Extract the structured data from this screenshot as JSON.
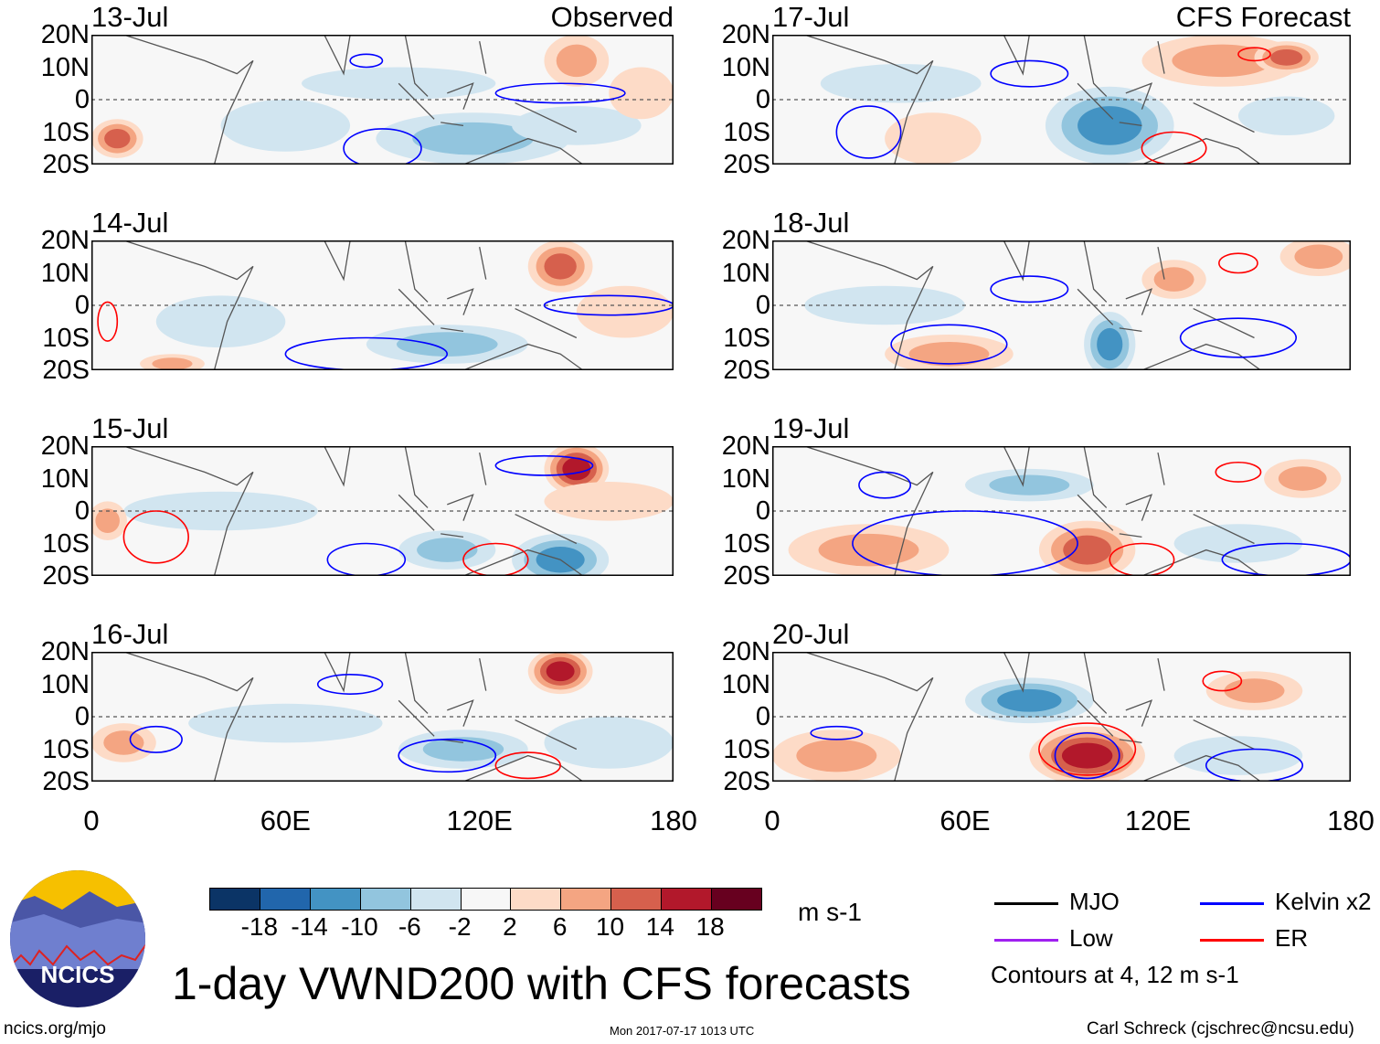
{
  "title": "1-day VWND200 with CFS forecasts",
  "left_label": "Observed",
  "right_label": "CFS Forecast",
  "lat_ticks": [
    "20N",
    "10N",
    "0",
    "10S",
    "20S"
  ],
  "lon_ticks": [
    "0",
    "60E",
    "120E",
    "180"
  ],
  "units": "m s-1",
  "colorbar": {
    "labels": [
      "-18",
      "-14",
      "-10",
      "-6",
      "-2",
      "2",
      "6",
      "10",
      "14",
      "18"
    ],
    "colors": [
      "#0b3466",
      "#2166ac",
      "#4393c3",
      "#92c5de",
      "#d1e5f0",
      "#f7f7f7",
      "#fddbc7",
      "#f4a582",
      "#d6604d",
      "#b2182b",
      "#67001f"
    ]
  },
  "legend": {
    "items": [
      {
        "label": "MJO",
        "color": "#000000"
      },
      {
        "label": "Kelvin x2",
        "color": "#0000ff"
      },
      {
        "label": "Low",
        "color": "#a020f0"
      },
      {
        "label": "ER",
        "color": "#ff0000"
      }
    ],
    "note": "Contours at 4, 12 m s-1"
  },
  "logo_text": "NCICS",
  "footer": {
    "url": "ncics.org/mjo",
    "timestamp": "Mon 2017-07-17 1013 UTC",
    "author": "Carl Schreck (cjschrec@ncsu.edu)"
  },
  "chart_data": {
    "type": "heatmap",
    "variable": "200-hPa meridional wind anomaly",
    "lon_range": [
      0,
      180
    ],
    "lat_range": [
      -20,
      20
    ],
    "panels": [
      {
        "date": "13-Jul",
        "blobs": [
          [
            8,
            -12,
            8,
            6,
            12
          ],
          [
            150,
            12,
            10,
            8,
            10
          ],
          [
            118,
            -12,
            30,
            8,
            -10
          ],
          [
            60,
            -8,
            20,
            8,
            -6
          ],
          [
            95,
            5,
            30,
            5,
            -4
          ],
          [
            150,
            -8,
            20,
            6,
            -6
          ],
          [
            170,
            2,
            10,
            8,
            6
          ]
        ],
        "contours": [
          [
            90,
            -15,
            12,
            6,
            "kelvin"
          ],
          [
            145,
            2,
            20,
            3,
            "kelvin"
          ],
          [
            85,
            12,
            5,
            2,
            "kelvin"
          ]
        ]
      },
      {
        "date": "17-Jul",
        "blobs": [
          [
            105,
            -8,
            20,
            12,
            -14
          ],
          [
            140,
            12,
            25,
            8,
            8
          ],
          [
            160,
            13,
            10,
            5,
            12
          ],
          [
            50,
            -12,
            15,
            8,
            6
          ],
          [
            40,
            5,
            25,
            6,
            -6
          ],
          [
            160,
            -5,
            15,
            6,
            -6
          ]
        ],
        "contours": [
          [
            80,
            8,
            12,
            4,
            "kelvin"
          ],
          [
            125,
            -15,
            10,
            5,
            "er"
          ],
          [
            150,
            14,
            5,
            2,
            "er"
          ],
          [
            30,
            -10,
            10,
            8,
            "kelvin"
          ]
        ]
      },
      {
        "date": "14-Jul",
        "blobs": [
          [
            145,
            12,
            10,
            8,
            14
          ],
          [
            110,
            -12,
            25,
            6,
            -10
          ],
          [
            165,
            -2,
            15,
            8,
            6
          ],
          [
            40,
            -5,
            20,
            8,
            -4
          ],
          [
            25,
            -18,
            10,
            3,
            8
          ]
        ],
        "contours": [
          [
            85,
            -15,
            25,
            5,
            "kelvin"
          ],
          [
            160,
            0,
            20,
            3,
            "kelvin"
          ],
          [
            5,
            -5,
            3,
            6,
            "er"
          ]
        ]
      },
      {
        "date": "18-Jul",
        "blobs": [
          [
            105,
            -12,
            8,
            10,
            -14
          ],
          [
            170,
            15,
            12,
            6,
            10
          ],
          [
            125,
            8,
            10,
            6,
            8
          ],
          [
            55,
            -15,
            20,
            6,
            8
          ],
          [
            35,
            0,
            25,
            6,
            -6
          ]
        ],
        "contours": [
          [
            80,
            5,
            12,
            4,
            "kelvin"
          ],
          [
            145,
            13,
            6,
            3,
            "er"
          ],
          [
            55,
            -12,
            18,
            6,
            "kelvin"
          ],
          [
            145,
            -10,
            18,
            6,
            "kelvin"
          ]
        ]
      },
      {
        "date": "15-Jul",
        "blobs": [
          [
            150,
            13,
            10,
            8,
            18
          ],
          [
            145,
            -15,
            15,
            8,
            -14
          ],
          [
            110,
            -12,
            15,
            6,
            -10
          ],
          [
            40,
            0,
            30,
            6,
            -4
          ],
          [
            5,
            -3,
            6,
            6,
            10
          ],
          [
            160,
            3,
            20,
            6,
            6
          ]
        ],
        "contours": [
          [
            85,
            -15,
            12,
            5,
            "kelvin"
          ],
          [
            140,
            14,
            15,
            3,
            "kelvin"
          ],
          [
            125,
            -15,
            10,
            5,
            "er"
          ],
          [
            20,
            -8,
            10,
            8,
            "er"
          ]
        ]
      },
      {
        "date": "19-Jul",
        "blobs": [
          [
            98,
            -12,
            15,
            9,
            14
          ],
          [
            165,
            10,
            12,
            6,
            8
          ],
          [
            80,
            8,
            20,
            5,
            -10
          ],
          [
            30,
            -12,
            25,
            8,
            8
          ],
          [
            145,
            -10,
            20,
            6,
            -6
          ]
        ],
        "contours": [
          [
            60,
            -10,
            35,
            10,
            "kelvin"
          ],
          [
            145,
            12,
            7,
            3,
            "er"
          ],
          [
            35,
            8,
            8,
            4,
            "kelvin"
          ],
          [
            160,
            -15,
            20,
            5,
            "kelvin"
          ],
          [
            115,
            -15,
            10,
            5,
            "er"
          ]
        ]
      },
      {
        "date": "16-Jul",
        "blobs": [
          [
            145,
            14,
            10,
            7,
            18
          ],
          [
            115,
            -10,
            20,
            6,
            -10
          ],
          [
            60,
            -2,
            30,
            6,
            -6
          ],
          [
            10,
            -8,
            10,
            6,
            8
          ],
          [
            160,
            -8,
            20,
            8,
            -6
          ]
        ],
        "contours": [
          [
            80,
            10,
            10,
            3,
            "kelvin"
          ],
          [
            135,
            -15,
            10,
            4,
            "er"
          ],
          [
            20,
            -7,
            8,
            4,
            "kelvin"
          ],
          [
            110,
            -12,
            15,
            5,
            "kelvin"
          ]
        ]
      },
      {
        "date": "20-Jul",
        "blobs": [
          [
            98,
            -12,
            18,
            9,
            16
          ],
          [
            80,
            5,
            20,
            7,
            -12
          ],
          [
            150,
            8,
            15,
            6,
            8
          ],
          [
            20,
            -12,
            20,
            8,
            8
          ],
          [
            145,
            -12,
            20,
            6,
            -6
          ]
        ],
        "contours": [
          [
            98,
            -10,
            15,
            8,
            "er"
          ],
          [
            98,
            -12,
            10,
            7,
            "kelvin"
          ],
          [
            140,
            11,
            6,
            3,
            "er"
          ],
          [
            20,
            -5,
            8,
            2,
            "kelvin"
          ],
          [
            150,
            -15,
            15,
            5,
            "kelvin"
          ]
        ]
      }
    ]
  }
}
